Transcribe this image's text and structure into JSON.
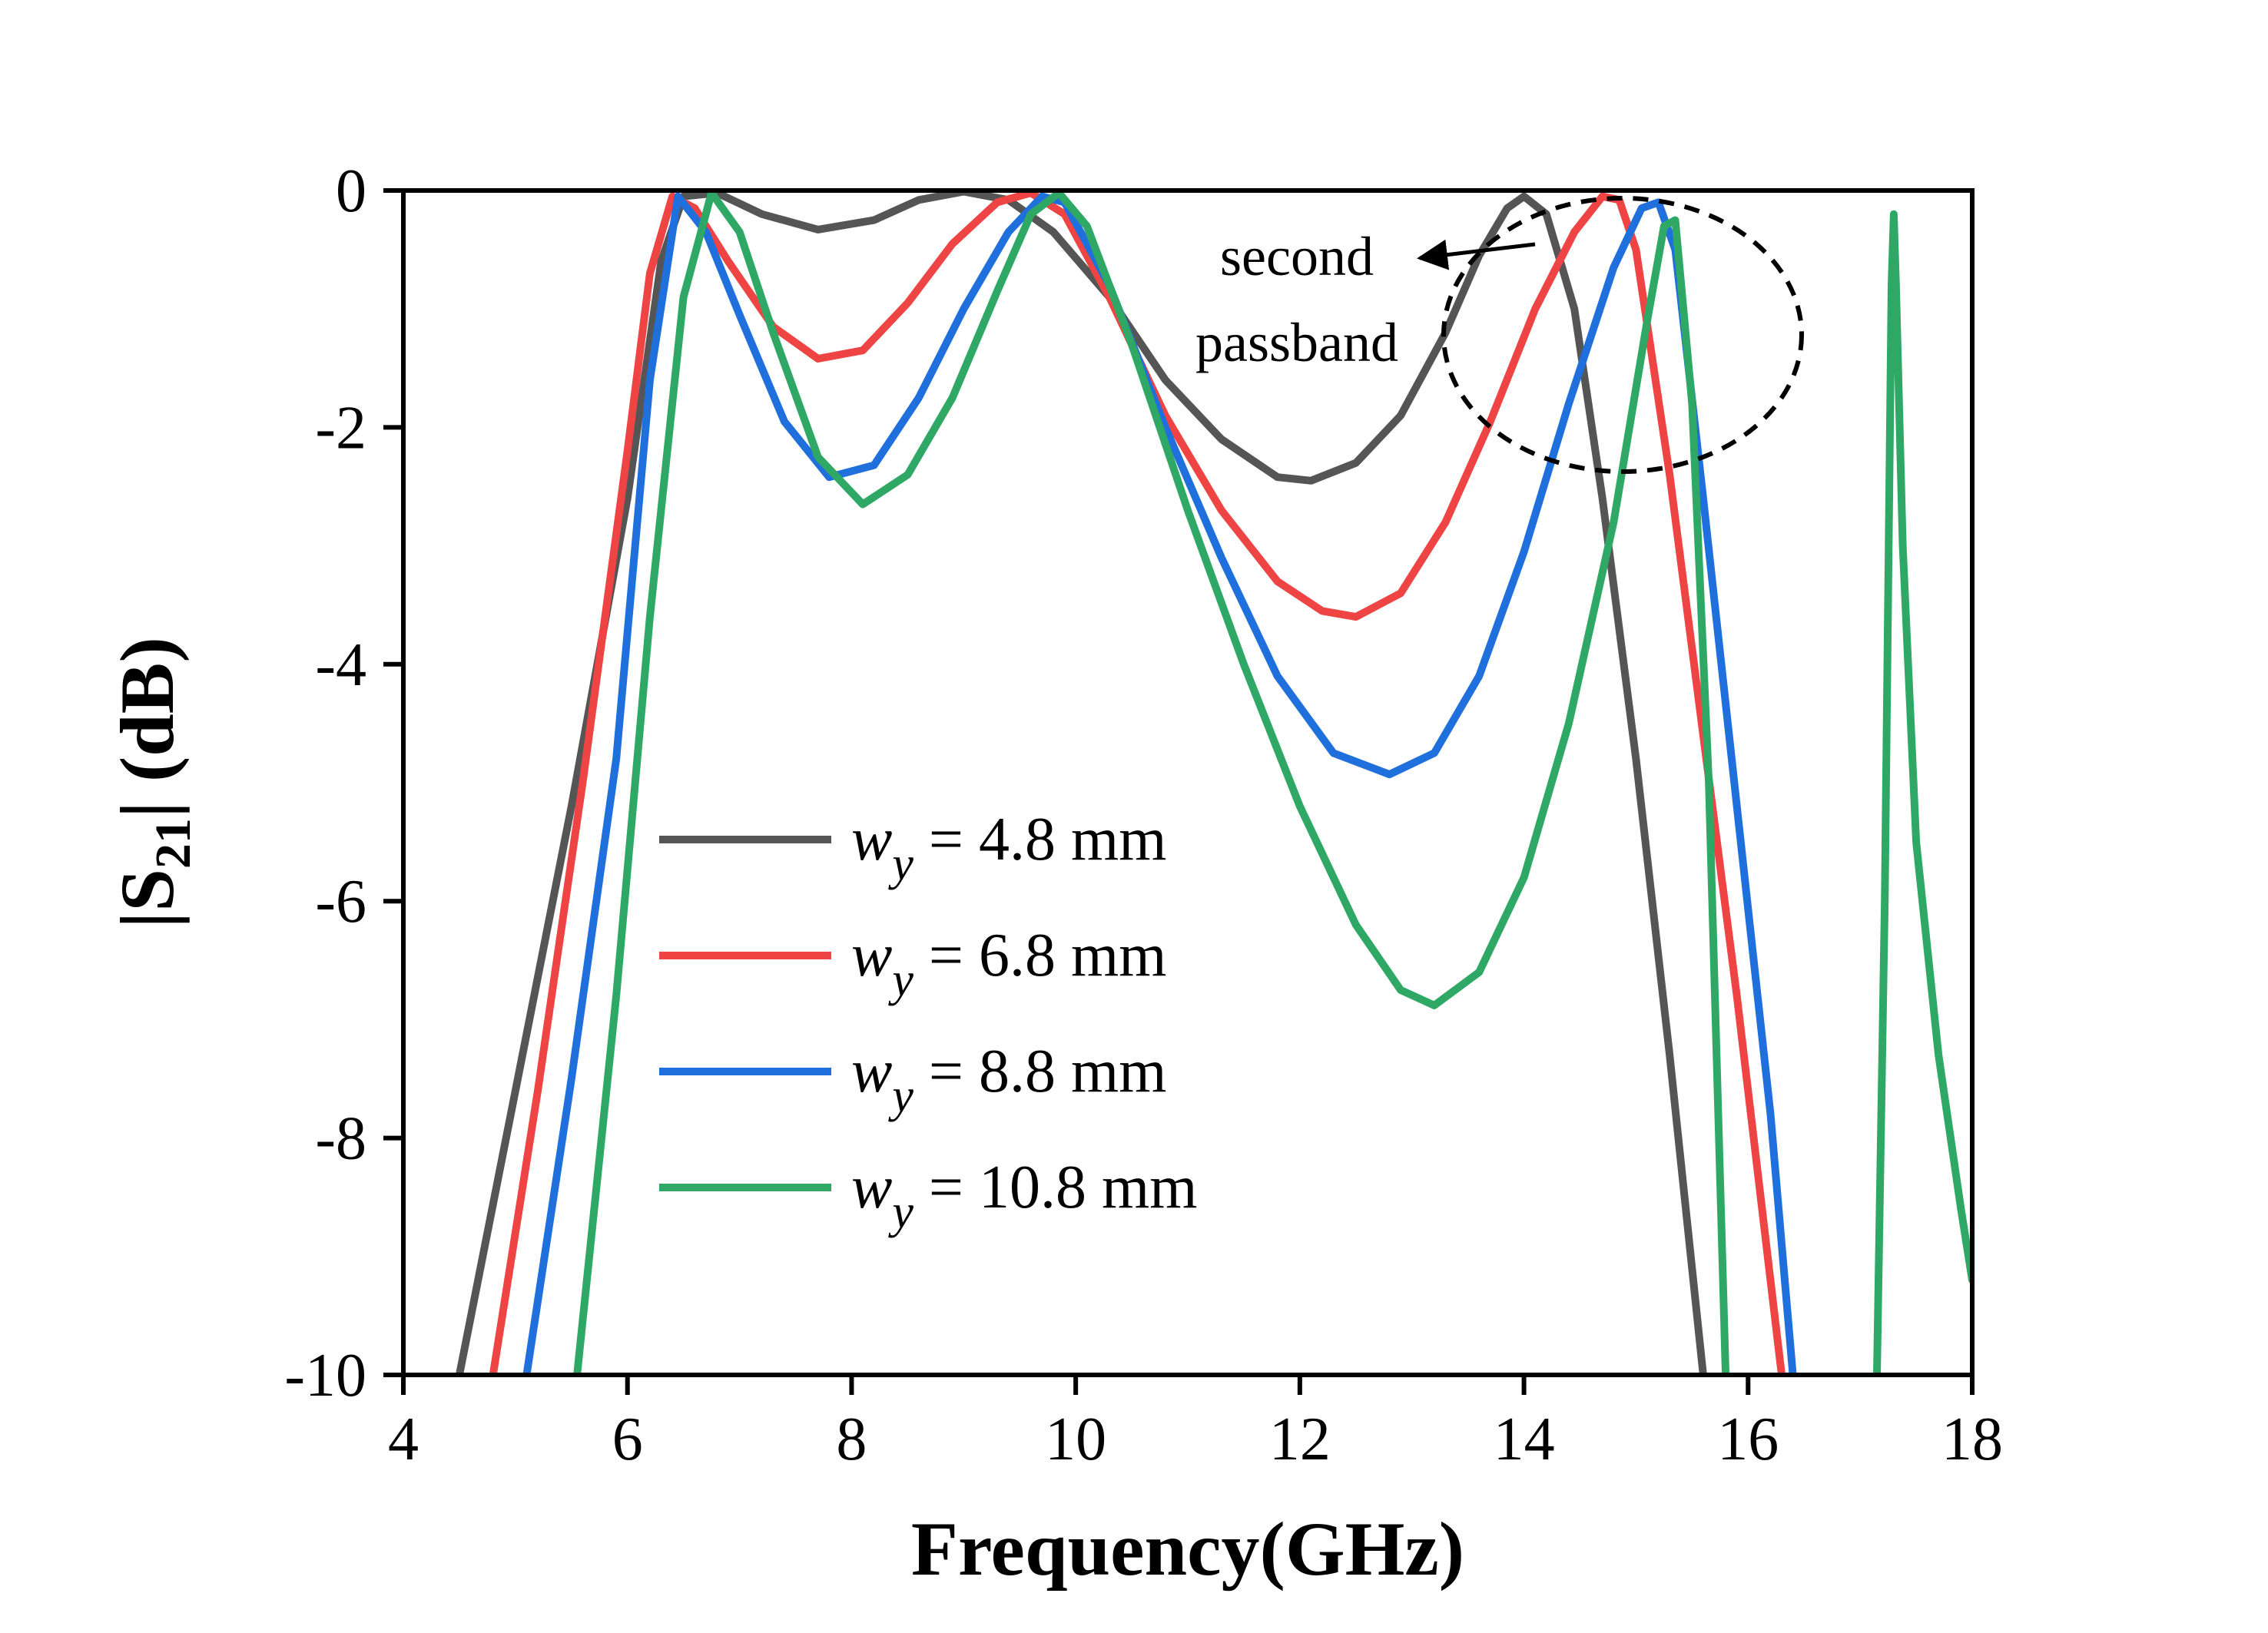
{
  "chart_data": {
    "type": "line",
    "title": "",
    "xlabel": "Frequency(GHz)",
    "ylabel": {
      "prefix": "|S",
      "sub": "21",
      "suffix": "| (dB)"
    },
    "xlim": [
      4,
      18
    ],
    "ylim": [
      -10,
      0
    ],
    "xticks": [
      4,
      6,
      8,
      10,
      12,
      14,
      16,
      18
    ],
    "yticks": [
      0,
      -2,
      -4,
      -6,
      -8,
      -10
    ],
    "grid": false,
    "legend_position": "lower-left",
    "annotation": {
      "lines": [
        "second",
        "passband"
      ]
    },
    "series": [
      {
        "name": "4.8 mm",
        "label_var": "w",
        "label_sub": "y",
        "label_rest": " = 4.8 mm",
        "color": "#555555",
        "points": [
          [
            4.5,
            -10
          ],
          [
            5.0,
            -7.6
          ],
          [
            5.5,
            -5.2
          ],
          [
            6.0,
            -2.6
          ],
          [
            6.3,
            -0.6
          ],
          [
            6.5,
            -0.05
          ],
          [
            6.8,
            -0.02
          ],
          [
            7.2,
            -0.2
          ],
          [
            7.7,
            -0.33
          ],
          [
            8.2,
            -0.25
          ],
          [
            8.6,
            -0.08
          ],
          [
            9.0,
            -0.01
          ],
          [
            9.4,
            -0.08
          ],
          [
            9.8,
            -0.35
          ],
          [
            10.3,
            -0.9
          ],
          [
            10.8,
            -1.6
          ],
          [
            11.3,
            -2.1
          ],
          [
            11.8,
            -2.42
          ],
          [
            12.1,
            -2.45
          ],
          [
            12.5,
            -2.3
          ],
          [
            12.9,
            -1.9
          ],
          [
            13.3,
            -1.2
          ],
          [
            13.6,
            -0.55
          ],
          [
            13.85,
            -0.15
          ],
          [
            14.0,
            -0.05
          ],
          [
            14.2,
            -0.2
          ],
          [
            14.45,
            -1.0
          ],
          [
            14.7,
            -2.6
          ],
          [
            15.0,
            -4.8
          ],
          [
            15.3,
            -7.3
          ],
          [
            15.6,
            -10
          ]
        ]
      },
      {
        "name": "6.8 mm",
        "label_var": "w",
        "label_sub": "y",
        "label_rest": " = 6.8 mm",
        "color": "#ef4444",
        "points": [
          [
            4.8,
            -10
          ],
          [
            5.2,
            -7.6
          ],
          [
            5.6,
            -5.0
          ],
          [
            6.0,
            -2.2
          ],
          [
            6.2,
            -0.7
          ],
          [
            6.4,
            -0.05
          ],
          [
            6.6,
            -0.15
          ],
          [
            6.9,
            -0.6
          ],
          [
            7.3,
            -1.15
          ],
          [
            7.7,
            -1.42
          ],
          [
            8.1,
            -1.35
          ],
          [
            8.5,
            -0.95
          ],
          [
            8.9,
            -0.45
          ],
          [
            9.3,
            -0.1
          ],
          [
            9.6,
            -0.02
          ],
          [
            9.9,
            -0.2
          ],
          [
            10.3,
            -0.9
          ],
          [
            10.8,
            -1.9
          ],
          [
            11.3,
            -2.7
          ],
          [
            11.8,
            -3.3
          ],
          [
            12.2,
            -3.55
          ],
          [
            12.5,
            -3.6
          ],
          [
            12.9,
            -3.4
          ],
          [
            13.3,
            -2.8
          ],
          [
            13.7,
            -1.95
          ],
          [
            14.1,
            -1.0
          ],
          [
            14.45,
            -0.35
          ],
          [
            14.7,
            -0.05
          ],
          [
            14.85,
            -0.08
          ],
          [
            15.0,
            -0.5
          ],
          [
            15.3,
            -2.4
          ],
          [
            15.6,
            -4.6
          ],
          [
            15.9,
            -6.8
          ],
          [
            16.3,
            -10
          ]
        ]
      },
      {
        "name": "8.8 mm",
        "label_var": "w",
        "label_sub": "y",
        "label_rest": " = 8.8 mm",
        "color": "#1f6fdc",
        "points": [
          [
            5.1,
            -10
          ],
          [
            5.5,
            -7.5
          ],
          [
            5.9,
            -4.8
          ],
          [
            6.2,
            -1.6
          ],
          [
            6.45,
            -0.05
          ],
          [
            6.7,
            -0.35
          ],
          [
            7.0,
            -1.05
          ],
          [
            7.4,
            -1.95
          ],
          [
            7.8,
            -2.42
          ],
          [
            8.2,
            -2.32
          ],
          [
            8.6,
            -1.75
          ],
          [
            9.0,
            -1.0
          ],
          [
            9.4,
            -0.35
          ],
          [
            9.7,
            -0.05
          ],
          [
            9.9,
            -0.1
          ],
          [
            10.3,
            -0.8
          ],
          [
            10.8,
            -2.0
          ],
          [
            11.3,
            -3.1
          ],
          [
            11.8,
            -4.1
          ],
          [
            12.3,
            -4.75
          ],
          [
            12.8,
            -4.93
          ],
          [
            13.2,
            -4.75
          ],
          [
            13.6,
            -4.1
          ],
          [
            14.0,
            -3.05
          ],
          [
            14.4,
            -1.8
          ],
          [
            14.8,
            -0.65
          ],
          [
            15.05,
            -0.15
          ],
          [
            15.2,
            -0.1
          ],
          [
            15.35,
            -0.5
          ],
          [
            15.6,
            -2.6
          ],
          [
            15.9,
            -5.2
          ],
          [
            16.2,
            -7.8
          ],
          [
            16.4,
            -10
          ]
        ]
      },
      {
        "name": "10.8 mm",
        "label_var": "w",
        "label_sub": "y",
        "label_rest": " = 10.8 mm",
        "color": "#2fa866",
        "points": [
          [
            5.55,
            -10
          ],
          [
            5.9,
            -6.8
          ],
          [
            6.2,
            -3.6
          ],
          [
            6.5,
            -0.9
          ],
          [
            6.75,
            -0.02
          ],
          [
            7.0,
            -0.35
          ],
          [
            7.3,
            -1.2
          ],
          [
            7.7,
            -2.25
          ],
          [
            8.1,
            -2.65
          ],
          [
            8.5,
            -2.4
          ],
          [
            8.9,
            -1.75
          ],
          [
            9.3,
            -0.85
          ],
          [
            9.6,
            -0.2
          ],
          [
            9.85,
            -0.02
          ],
          [
            10.1,
            -0.3
          ],
          [
            10.5,
            -1.3
          ],
          [
            11.0,
            -2.7
          ],
          [
            11.5,
            -4.0
          ],
          [
            12.0,
            -5.2
          ],
          [
            12.5,
            -6.2
          ],
          [
            12.9,
            -6.75
          ],
          [
            13.2,
            -6.88
          ],
          [
            13.6,
            -6.6
          ],
          [
            14.0,
            -5.8
          ],
          [
            14.4,
            -4.5
          ],
          [
            14.8,
            -2.8
          ],
          [
            15.1,
            -1.1
          ],
          [
            15.25,
            -0.3
          ],
          [
            15.35,
            -0.25
          ],
          [
            15.5,
            -1.8
          ],
          [
            15.65,
            -5.0
          ],
          [
            15.8,
            -10
          ],
          null,
          [
            17.15,
            -10
          ],
          [
            17.22,
            -6.0
          ],
          [
            17.28,
            -0.8
          ],
          [
            17.3,
            -0.2
          ],
          [
            17.32,
            -0.8
          ],
          [
            17.38,
            -3.0
          ],
          [
            17.5,
            -5.5
          ],
          [
            17.7,
            -7.3
          ],
          [
            17.9,
            -8.6
          ],
          [
            18.0,
            -9.2
          ]
        ]
      }
    ]
  }
}
